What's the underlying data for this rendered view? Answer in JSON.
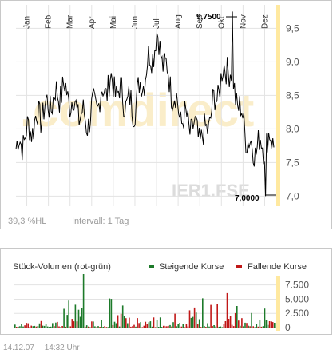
{
  "price_chart": {
    "month_labels": [
      "Jan",
      "Feb",
      "Mar",
      "Apr",
      "Mai",
      "Jun",
      "Jul",
      "Aug",
      "Sep",
      "Okt",
      "Nov",
      "Dez"
    ],
    "y_ticks": [
      "9,5",
      "9,0",
      "8,5",
      "8,0",
      "7,5",
      "7,0"
    ],
    "high_label": "9,7500",
    "low_label": "7,0000",
    "watermark": ".comdirect",
    "isin": "IER1.FSE",
    "hl_text": "39,3 %HL",
    "interval_text": "Intervall: 1 Tag",
    "colors": {
      "line": "#000000",
      "grid": "#e3e3e3",
      "accent": "#ffe9a0",
      "text": "#9a9a9a"
    }
  },
  "volume_chart": {
    "title": "Stück-Volumen (rot-grün)",
    "legend_rising": "Steigende Kurse",
    "legend_falling": "Fallende Kurse",
    "y_ticks": [
      "7.500",
      "5.000",
      "2.500",
      "0"
    ],
    "colors": {
      "rising": "#1d7a2a",
      "falling": "#c01818"
    }
  },
  "footer": {
    "date": "14.12.07",
    "time": "14:32 Uhr"
  },
  "chart_data": [
    {
      "type": "line",
      "x": [
        "Jan",
        "Feb",
        "Mar",
        "Apr",
        "Mai",
        "Jun",
        "Jul",
        "Aug",
        "Sep",
        "Okt",
        "Nov",
        "Dez"
      ],
      "values": [
        7.7,
        8.2,
        8.6,
        8.1,
        8.7,
        8.3,
        9.35,
        8.2,
        7.85,
        9.0,
        7.7,
        7.85
      ],
      "ylim": [
        6.85,
        9.85
      ],
      "high": 9.75,
      "low": 7.0
    },
    {
      "type": "bar",
      "series": [
        {
          "name": "Steigende Kurse",
          "values": [
            500,
            800,
            8500,
            1200,
            6500,
            900,
            1500,
            4000,
            1500,
            6000,
            3000,
            2800
          ]
        },
        {
          "name": "Fallende Kurse",
          "values": [
            1000,
            1600,
            1200,
            900,
            2500,
            1500,
            2200,
            3000,
            5500,
            3000,
            2500,
            1600
          ]
        }
      ],
      "ylim": [
        0,
        9000
      ]
    }
  ]
}
